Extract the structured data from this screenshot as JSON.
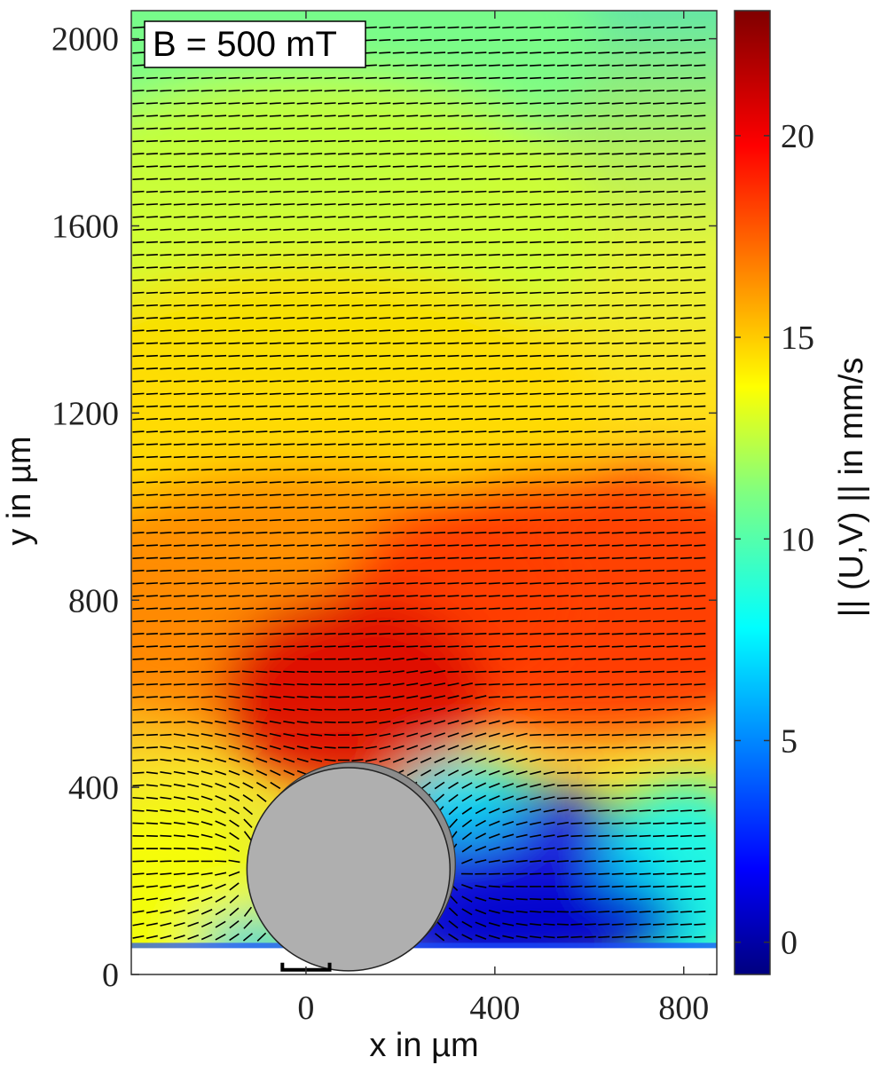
{
  "chart_data": {
    "type": "heatmap",
    "subtype": "velocity-quiver-field",
    "annotation": "B = 500 mT",
    "xlabel": "x in µm",
    "ylabel": "y in µm",
    "colorbar_label": "|| (U,V) || in mm/s",
    "x_range": [
      -370,
      870
    ],
    "y_range": [
      0,
      2060
    ],
    "x_ticks": [
      0,
      400,
      800
    ],
    "y_ticks": [
      0,
      400,
      800,
      1200,
      1600,
      2000
    ],
    "colorbar_range": [
      -0.8,
      23.1
    ],
    "colorbar_ticks": [
      0,
      5,
      10,
      15,
      20
    ],
    "colormap": "jet",
    "grid": false,
    "flow_direction": "negative x (right to left)",
    "max_speed_region": {
      "x": 100,
      "y": 650,
      "speed": 21
    },
    "obstacle": {
      "shape": "circle",
      "center_x": 90,
      "center_y": 225,
      "radius": 215,
      "fill": "#afafaf"
    },
    "scale_bar": {
      "x_start": -50,
      "x_end": 50,
      "y": 10
    },
    "speed_field": [
      {
        "x": 0,
        "y": 2000,
        "speed": 11
      },
      {
        "x": 0,
        "y": 1600,
        "speed": 13
      },
      {
        "x": 0,
        "y": 1200,
        "speed": 15
      },
      {
        "x": 0,
        "y": 800,
        "speed": 17
      },
      {
        "x": 600,
        "y": 800,
        "speed": 19
      },
      {
        "x": 100,
        "y": 600,
        "speed": 21
      },
      {
        "x": 400,
        "y": 200,
        "speed": 2
      },
      {
        "x": -300,
        "y": 150,
        "speed": 14
      },
      {
        "x": 800,
        "y": 200,
        "speed": 8
      }
    ]
  }
}
